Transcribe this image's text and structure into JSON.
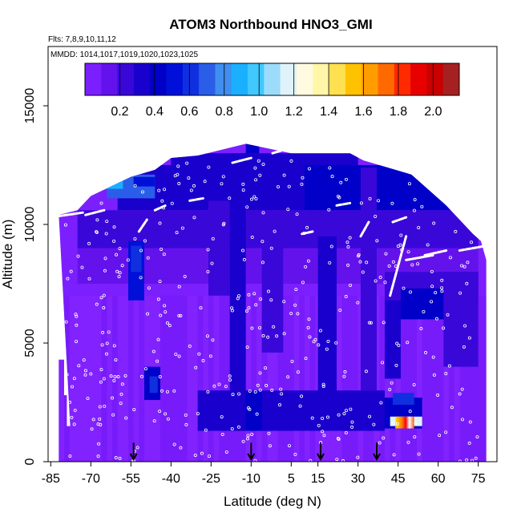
{
  "chart_data": {
    "type": "heatmap",
    "title": "ATOM3 Northbound HNO3_GMI",
    "subtitle_flights": "Flts: 7,8,9,10,11,12",
    "subtitle_dates": "MMDD: 1014,1017,1019,1020,1023,1025",
    "xlabel": "Latitude (deg N)",
    "ylabel": "Altitude (m)",
    "xlim": [
      -86,
      82
    ],
    "ylim": [
      0,
      17500
    ],
    "x_ticks": [
      -85,
      -70,
      -55,
      -40,
      -25,
      -10,
      5,
      15,
      30,
      45,
      60,
      75
    ],
    "x_tick_labels": [
      "-85",
      "-70",
      "-55",
      "-40",
      "-25",
      "-10",
      "5",
      "15",
      "30",
      "45",
      "60",
      "75"
    ],
    "y_ticks": [
      0,
      5000,
      10000,
      15000
    ],
    "y_tick_labels": [
      "0",
      "5000",
      "10000",
      "15000"
    ],
    "colorbar": {
      "range": [
        0,
        2.15
      ],
      "ticks": [
        0.2,
        0.4,
        0.6,
        0.8,
        1.0,
        1.2,
        1.4,
        1.6,
        1.8,
        2.0
      ],
      "tick_labels": [
        "0.2",
        "0.4",
        "0.6",
        "0.8",
        "1.0",
        "1.2",
        "1.4",
        "1.6",
        "1.8",
        "2.0"
      ],
      "colors": [
        "#7c1fff",
        "#6412ec",
        "#3a07d9",
        "#1a00cc",
        "#0000c8",
        "#0010d8",
        "#1030e0",
        "#2a5ee8",
        "#3f8ef0",
        "#1ab0ff",
        "#40c8ff",
        "#9cdcfa",
        "#e0f3fb",
        "#fffbe0",
        "#fff6a8",
        "#ffe050",
        "#ffc200",
        "#ff9d00",
        "#ff6a00",
        "#ff2a00",
        "#e80000",
        "#c80000",
        "#a52020"
      ]
    },
    "profile_bounds": [
      {
        "lat": -82,
        "alt": 10400
      },
      {
        "lat": -75,
        "alt": 10600
      },
      {
        "lat": -70,
        "alt": 11200
      },
      {
        "lat": -55,
        "alt": 12000
      },
      {
        "lat": -46,
        "alt": 12300
      },
      {
        "lat": -40,
        "alt": 12800
      },
      {
        "lat": -30,
        "alt": 12900
      },
      {
        "lat": -12,
        "alt": 13400
      },
      {
        "lat": 5,
        "alt": 13000
      },
      {
        "lat": 27,
        "alt": 13000
      },
      {
        "lat": 32,
        "alt": 12700
      },
      {
        "lat": 50,
        "alt": 12100
      },
      {
        "lat": 58,
        "alt": 11300
      },
      {
        "lat": 63,
        "alt": 10800
      },
      {
        "lat": 68,
        "alt": 10200
      },
      {
        "lat": 73,
        "alt": 9600
      },
      {
        "lat": 76,
        "alt": 9300
      },
      {
        "lat": 78,
        "alt": 8500
      }
    ],
    "profile_bottom": [
      {
        "lat": -82,
        "alt": 0
      },
      {
        "lat": -82,
        "alt": 4300
      },
      {
        "lat": -80,
        "alt": 4300
      },
      {
        "lat": -80,
        "alt": 2800
      },
      {
        "lat": -79,
        "alt": 2800
      },
      {
        "lat": -79,
        "alt": 1500
      },
      {
        "lat": -77,
        "alt": 1500
      },
      {
        "lat": -77,
        "alt": 0
      }
    ],
    "regions": [
      {
        "lat": [
          -75,
          75
        ],
        "alt": [
          7500,
          9000
        ],
        "value": 0.1
      },
      {
        "lat": [
          -75,
          75
        ],
        "alt": [
          9000,
          10600
        ],
        "value": 0.25
      },
      {
        "lat": [
          -60,
          10
        ],
        "alt": [
          10600,
          12500
        ],
        "value": 0.32
      },
      {
        "lat": [
          10,
          70
        ],
        "alt": [
          10600,
          12500
        ],
        "value": 0.38
      },
      {
        "lat": [
          -64,
          -46
        ],
        "alt": [
          11100,
          12100
        ],
        "value": 0.7
      },
      {
        "lat": [
          -68,
          -58
        ],
        "alt": [
          11500,
          12000
        ],
        "value": 0.9
      },
      {
        "lat": [
          -54,
          -46
        ],
        "alt": [
          11600,
          12000
        ],
        "value": 0.55
      },
      {
        "lat": [
          -40,
          30
        ],
        "alt": [
          12500,
          13000
        ],
        "value": 0.35
      },
      {
        "lat": [
          -12,
          -7
        ],
        "alt": [
          13000,
          13400
        ],
        "value": 0.4
      },
      {
        "lat": [
          -56,
          -50
        ],
        "alt": [
          6800,
          9300
        ],
        "value": 0.5
      },
      {
        "lat": [
          -55,
          -51
        ],
        "alt": [
          8000,
          9100
        ],
        "value": 0.65
      },
      {
        "lat": [
          -26,
          -18
        ],
        "alt": [
          7000,
          11000
        ],
        "value": 0.28
      },
      {
        "lat": [
          -18,
          -12
        ],
        "alt": [
          2000,
          13000
        ],
        "value": 0.3
      },
      {
        "lat": [
          -6,
          2
        ],
        "alt": [
          4600,
          10500
        ],
        "value": 0.25
      },
      {
        "lat": [
          15,
          22
        ],
        "alt": [
          1500,
          9500
        ],
        "value": 0.3
      },
      {
        "lat": [
          31,
          37
        ],
        "alt": [
          3000,
          12400
        ],
        "value": 0.28
      },
      {
        "lat": [
          40,
          46
        ],
        "alt": [
          3500,
          7500
        ],
        "value": 0.3
      },
      {
        "lat": [
          40,
          75
        ],
        "alt": [
          6800,
          8000
        ],
        "value": 0.28
      },
      {
        "lat": [
          46,
          66
        ],
        "alt": [
          6000,
          7300
        ],
        "value": 0.38
      },
      {
        "lat": [
          62,
          75
        ],
        "alt": [
          4000,
          8000
        ],
        "value": 0.22
      },
      {
        "lat": [
          -50,
          -44
        ],
        "alt": [
          2600,
          4000
        ],
        "value": 0.4
      },
      {
        "lat": [
          -48,
          -45
        ],
        "alt": [
          2900,
          3600
        ],
        "value": 0.6
      },
      {
        "lat": [
          -30,
          40
        ],
        "alt": [
          1300,
          3000
        ],
        "value": 0.35
      },
      {
        "lat": [
          -12,
          -6
        ],
        "alt": [
          1300,
          3000
        ],
        "value": 0.45
      },
      {
        "lat": [
          40,
          54
        ],
        "alt": [
          1400,
          2700
        ],
        "value": 0.4
      },
      {
        "lat": [
          43,
          51
        ],
        "alt": [
          2400,
          2900
        ],
        "value": 0.6
      },
      {
        "lat": [
          42,
          54
        ],
        "alt": [
          1500,
          1900
        ],
        "value": 1.2
      }
    ],
    "flight_tracks": [
      {
        "lat": [
          -85,
          -73
        ],
        "alt": [
          10300,
          10500
        ]
      },
      {
        "lat": [
          -72,
          -65
        ],
        "alt": [
          10400,
          10600
        ]
      },
      {
        "lat": [
          -52,
          -49
        ],
        "alt": [
          9700,
          10200
        ]
      },
      {
        "lat": [
          -46,
          -42
        ],
        "alt": [
          10600,
          10800
        ]
      },
      {
        "lat": [
          -33,
          -28
        ],
        "alt": [
          11000,
          11100
        ]
      },
      {
        "lat": [
          -17,
          -10
        ],
        "alt": [
          12600,
          12800
        ]
      },
      {
        "lat": [
          -2,
          1
        ],
        "alt": [
          13000,
          13100
        ]
      },
      {
        "lat": [
          9,
          13
        ],
        "alt": [
          9600,
          9700
        ]
      },
      {
        "lat": [
          22,
          27
        ],
        "alt": [
          10800,
          10900
        ]
      },
      {
        "lat": [
          31,
          34
        ],
        "alt": [
          9500,
          10100
        ]
      },
      {
        "lat": [
          43,
          48
        ],
        "alt": [
          10100,
          10300
        ]
      },
      {
        "lat": [
          48,
          58
        ],
        "alt": [
          8500,
          8700
        ]
      },
      {
        "lat": [
          55,
          63
        ],
        "alt": [
          8700,
          8900
        ]
      },
      {
        "lat": [
          68,
          78
        ],
        "alt": [
          8900,
          9100
        ]
      },
      {
        "lat": [
          42,
          48
        ],
        "alt": [
          7000,
          9500
        ]
      }
    ],
    "arrow_positions": [
      -54,
      -10,
      16,
      37
    ]
  }
}
